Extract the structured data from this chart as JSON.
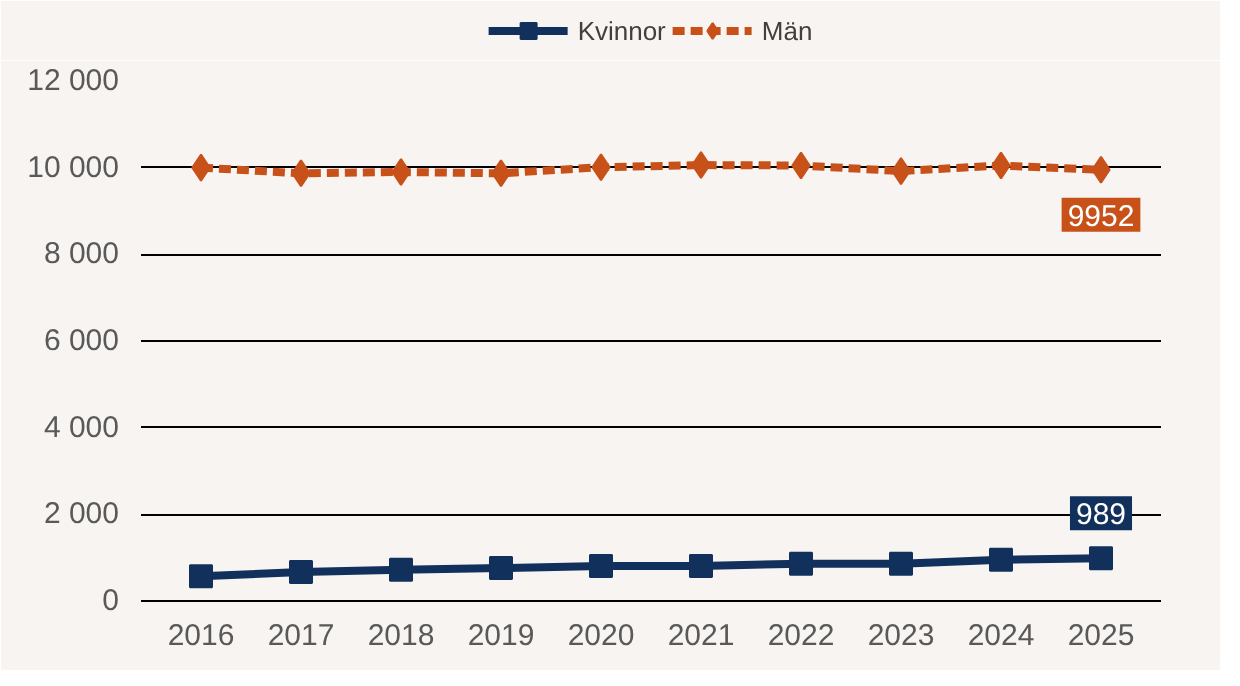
{
  "chart_data": {
    "type": "line",
    "categories": [
      "2016",
      "2017",
      "2018",
      "2019",
      "2020",
      "2021",
      "2022",
      "2023",
      "2024",
      "2025"
    ],
    "series": [
      {
        "name": "Kvinnor",
        "color": "#12305c",
        "marker": "square",
        "line_style": "solid",
        "values": [
          570,
          670,
          720,
          760,
          810,
          810,
          860,
          860,
          950,
          989
        ],
        "value_labels": [
          null,
          null,
          null,
          null,
          null,
          null,
          null,
          null,
          null,
          "989"
        ]
      },
      {
        "name": "Män",
        "color": "#c8511a",
        "marker": "diamond",
        "line_style": "dashed",
        "values": [
          10000,
          9870,
          9900,
          9870,
          10010,
          10060,
          10050,
          9920,
          10050,
          9952
        ],
        "value_labels": [
          null,
          null,
          null,
          null,
          null,
          null,
          null,
          null,
          null,
          "9952"
        ]
      }
    ],
    "ylim": [
      0,
      12000
    ],
    "yticks": [
      {
        "value": 0,
        "label": "0"
      },
      {
        "value": 2000,
        "label": "2 000"
      },
      {
        "value": 4000,
        "label": "4 000"
      },
      {
        "value": 6000,
        "label": "6 000"
      },
      {
        "value": 8000,
        "label": "8 000"
      },
      {
        "value": 10000,
        "label": "10 000"
      },
      {
        "value": 12000,
        "label": "12 000"
      }
    ],
    "grid": "y",
    "legend": "top"
  }
}
